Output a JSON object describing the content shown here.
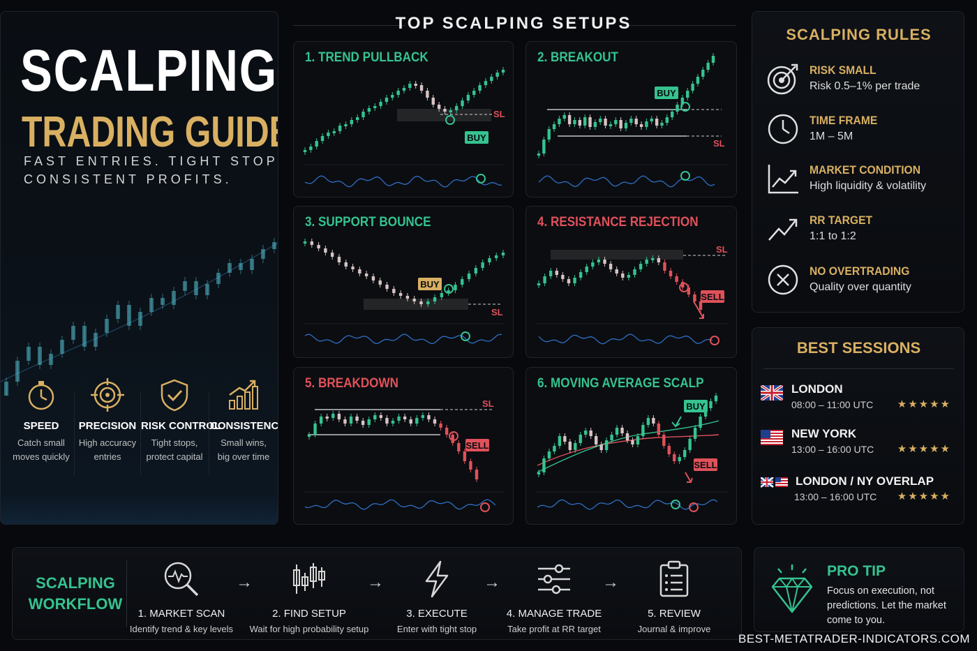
{
  "hero": {
    "title": "SCALPING",
    "subtitle": "TRADING GUIDE",
    "tagline_1": "FAST ENTRIES. TIGHT STOPS.",
    "tagline_2": "CONSISTENT PROFITS.",
    "features": [
      {
        "icon": "stopwatch-icon",
        "title": "SPEED",
        "desc_1": "Catch small",
        "desc_2": "moves quickly"
      },
      {
        "icon": "target-icon",
        "title": "PRECISION",
        "desc_1": "High accuracy",
        "desc_2": "entries"
      },
      {
        "icon": "shield-check-icon",
        "title": "RISK CONTROL",
        "desc_1": "Tight stops,",
        "desc_2": "protect capital"
      },
      {
        "icon": "growth-chart-icon",
        "title": "CONSISTENCY",
        "desc_1": "Small wins,",
        "desc_2": "big over time"
      }
    ]
  },
  "setups": {
    "title": "TOP SCALPING SETUPS",
    "cards": [
      {
        "title": "1. TREND PULLBACK",
        "color": "#35c38f",
        "signal": "BUY",
        "stop": "SL"
      },
      {
        "title": "2. BREAKOUT",
        "color": "#35c38f",
        "signal": "BUY",
        "stop": "SL"
      },
      {
        "title": "3. SUPPORT BOUNCE",
        "color": "#35c38f",
        "signal": "BUY",
        "stop": "SL"
      },
      {
        "title": "4. RESISTANCE REJECTION",
        "color": "#e0515a",
        "signal": "SELL",
        "stop": "SL"
      },
      {
        "title": "5. BREAKDOWN",
        "color": "#e0515a",
        "signal": "SELL",
        "stop": "SL"
      },
      {
        "title": "6. MOVING AVERAGE SCALP",
        "color": "#35c38f",
        "signal_buy": "BUY",
        "signal_sell": "SELL"
      }
    ]
  },
  "rules": {
    "title": "SCALPING RULES",
    "items": [
      {
        "icon": "target-arrow-icon",
        "title": "RISK SMALL",
        "desc": "Risk 0.5–1% per trade"
      },
      {
        "icon": "clock-icon",
        "title": "TIME FRAME",
        "desc": "1M – 5M"
      },
      {
        "icon": "trend-chart-icon",
        "title": "MARKET CONDITION",
        "desc": "High liquidity & volatility"
      },
      {
        "icon": "trend-arrow-icon",
        "title": "RR TARGET",
        "desc": "1:1 to 1:2"
      },
      {
        "icon": "x-circle-icon",
        "title": "NO OVERTRADING",
        "desc": "Quality over quantity"
      }
    ]
  },
  "sessions": {
    "title": "BEST SESSIONS",
    "items": [
      {
        "flag": "uk-flag-icon",
        "name": "LONDON",
        "time": "08:00 – 11:00 UTC",
        "stars": "★★★★★"
      },
      {
        "flag": "us-flag-icon",
        "name": "NEW YORK",
        "time": "13:00 – 16:00 UTC",
        "stars": "★★★★★"
      },
      {
        "flag": "uk-us-flag-icon",
        "name": "LONDON / NY OVERLAP",
        "time": "13:00 – 16:00 UTC",
        "stars": "★★★★★"
      }
    ]
  },
  "workflow": {
    "title_1": "SCALPING",
    "title_2": "WORKFLOW",
    "steps": [
      {
        "icon": "magnifier-pulse-icon",
        "title": "1. MARKET SCAN",
        "desc": "Identify trend & key levels"
      },
      {
        "icon": "candlestick-icon",
        "title": "2. FIND SETUP",
        "desc": "Wait for high probability setup"
      },
      {
        "icon": "lightning-icon",
        "title": "3. EXECUTE",
        "desc": "Enter with tight stop"
      },
      {
        "icon": "sliders-icon",
        "title": "4. MANAGE TRADE",
        "desc": "Take profit at RR target"
      },
      {
        "icon": "clipboard-icon",
        "title": "5. REVIEW",
        "desc": "Journal & improve"
      }
    ],
    "arrow": "→"
  },
  "protip": {
    "icon": "diamond-icon",
    "title": "PRO TIP",
    "text": "Focus on execution, not predictions. Let the market come to you."
  },
  "site": "BEST-METATRADER-INDICATORS.COM",
  "colors": {
    "gold": "#d9b062",
    "teal": "#35c38f",
    "red": "#e0515a",
    "bg": "#07090d"
  }
}
